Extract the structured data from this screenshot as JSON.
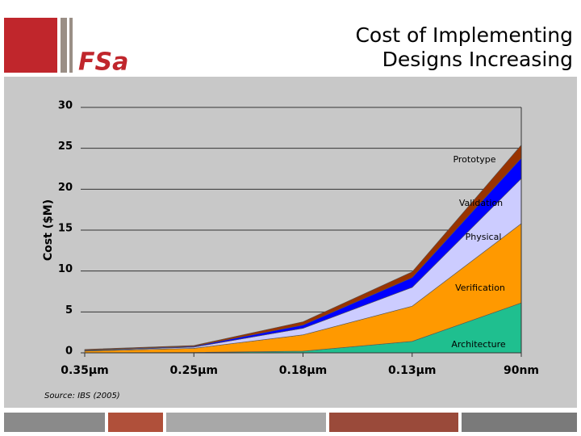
{
  "logo": "FSa",
  "chart_data": {
    "type": "stacked-area",
    "title": [
      "Cost of Implementing",
      "Designs Increasing"
    ],
    "y_label": "Cost ($M)",
    "source": "Source: IBS (2005)",
    "categories": [
      "0.35µm",
      "0.25µm",
      "0.18µm",
      "0.13µm",
      "90nm"
    ],
    "series": [
      {
        "name": "Architecture",
        "color": "#1fbf8f",
        "values": [
          0.02,
          0.05,
          0.2,
          1.4,
          6.1
        ]
      },
      {
        "name": "Verification",
        "color": "#ff9900",
        "values": [
          0.2,
          0.5,
          2.0,
          4.3,
          9.7
        ]
      },
      {
        "name": "Physical",
        "color": "#ccccff",
        "values": [
          0.05,
          0.15,
          0.8,
          2.3,
          5.5
        ]
      },
      {
        "name": "Validation",
        "color": "#0000ff",
        "values": [
          0.05,
          0.1,
          0.4,
          1.2,
          2.5
        ]
      },
      {
        "name": "Prototype",
        "color": "#993300",
        "values": [
          0.1,
          0.1,
          0.4,
          0.7,
          1.6
        ]
      }
    ],
    "ylim": [
      0,
      30
    ],
    "yticks": [
      0,
      5,
      10,
      15,
      20,
      25,
      30
    ],
    "grid": true
  }
}
